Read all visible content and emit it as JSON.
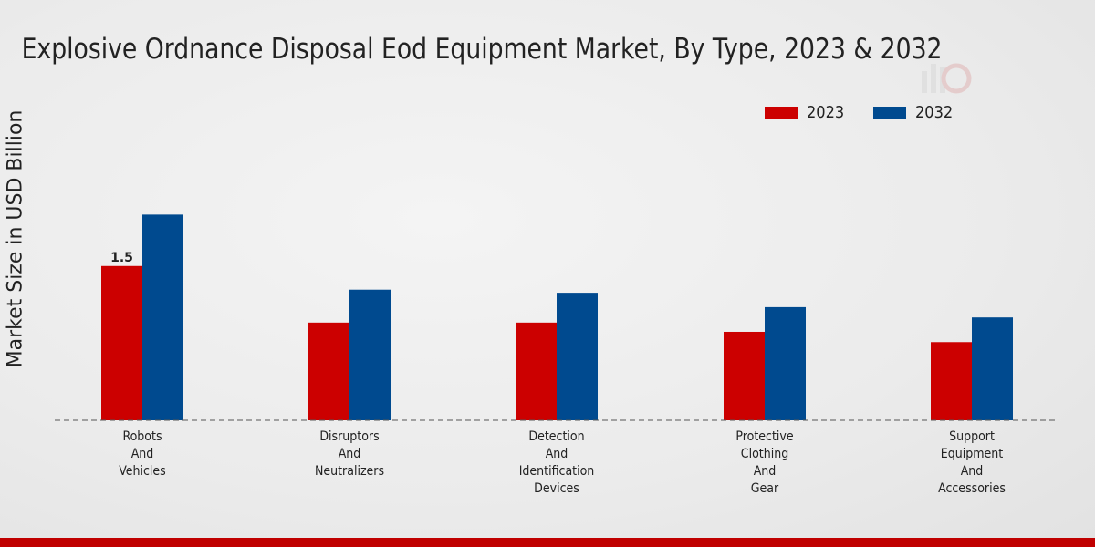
{
  "chart_data": {
    "type": "bar",
    "title": "Explosive Ordnance Disposal Eod Equipment Market, By Type, 2023 & 2032",
    "xlabel": "",
    "ylabel": "Market Size in USD Billion",
    "categories": [
      [
        "Robots",
        "And",
        "Vehicles"
      ],
      [
        "Disruptors",
        "And",
        "Neutralizers"
      ],
      [
        "Detection",
        "And",
        "Identification",
        "Devices"
      ],
      [
        "Protective",
        "Clothing",
        "And",
        "Gear"
      ],
      [
        "Support",
        "Equipment",
        "And",
        "Accessories"
      ]
    ],
    "series": [
      {
        "name": "2023",
        "color": "#cc0000",
        "values": [
          1.5,
          0.95,
          0.95,
          0.86,
          0.76
        ]
      },
      {
        "name": "2032",
        "color": "#004a8f",
        "values": [
          2.0,
          1.27,
          1.24,
          1.1,
          1.0
        ]
      }
    ],
    "data_labels": [
      {
        "series": 0,
        "index": 0,
        "text": "1.5"
      }
    ],
    "ylim": [
      0,
      3.2
    ],
    "legend_position": "top-right",
    "grid": false
  }
}
